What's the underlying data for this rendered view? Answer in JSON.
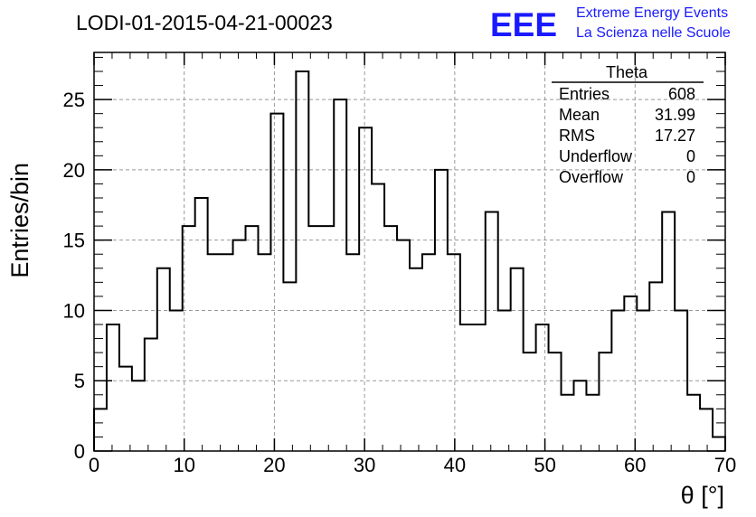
{
  "title": "LODI-01-2015-04-21-00023",
  "logo": {
    "mark": "EEE",
    "line1": "Extreme Energy Events",
    "line2": "La Scienza nelle Scuole",
    "color": "#1a1aff"
  },
  "stats": {
    "name": "Theta",
    "rows": [
      {
        "label": "Entries",
        "value": "608"
      },
      {
        "label": "Mean",
        "value": "31.99"
      },
      {
        "label": "RMS",
        "value": "17.27"
      },
      {
        "label": "Underflow",
        "value": "0"
      },
      {
        "label": "Overflow",
        "value": "0"
      }
    ]
  },
  "chart_data": {
    "type": "histogram",
    "xlabel": "θ [°]",
    "ylabel": "Entries/bin",
    "xlim": [
      0,
      70
    ],
    "ylim": [
      0,
      28.35
    ],
    "bin_width": 1.4,
    "grid": true,
    "x_ticks": [
      0,
      10,
      20,
      30,
      40,
      50,
      60,
      70
    ],
    "y_ticks": [
      0,
      5,
      10,
      15,
      20,
      25
    ],
    "values": [
      3,
      9,
      6,
      5,
      8,
      13,
      10,
      16,
      18,
      14,
      14,
      15,
      16,
      14,
      24,
      12,
      27,
      16,
      16,
      25,
      14,
      23,
      19,
      16,
      15,
      13,
      14,
      20,
      14,
      9,
      9,
      17,
      10,
      13,
      7,
      9,
      7,
      4,
      5,
      4,
      7,
      10,
      11,
      10,
      12,
      17,
      10,
      4,
      3,
      1
    ]
  }
}
